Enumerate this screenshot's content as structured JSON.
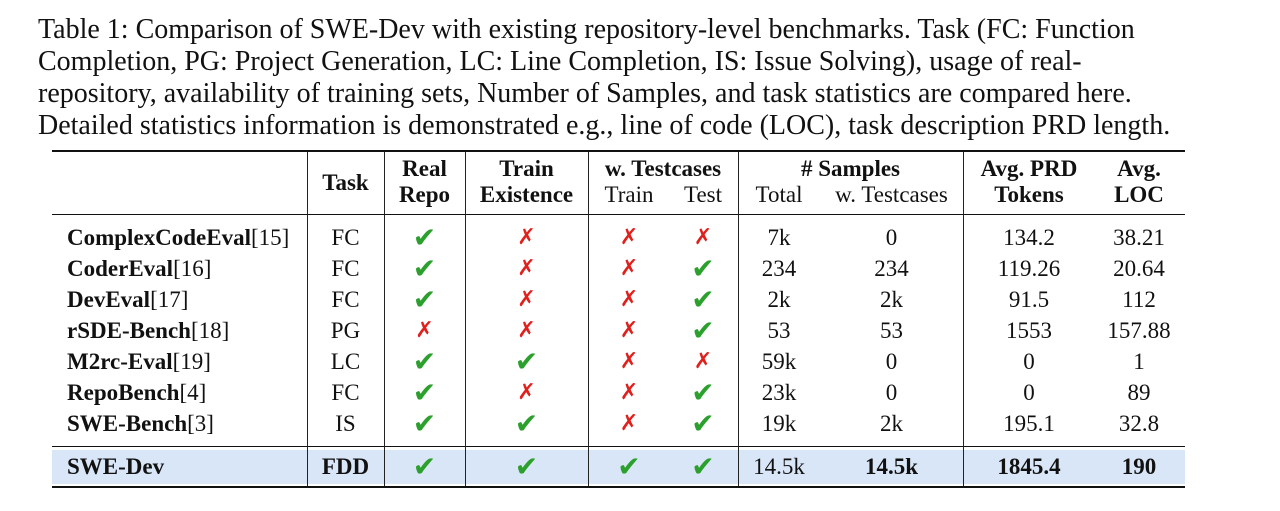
{
  "caption": [
    "Table 1: Comparison of SWE-Dev with existing repository-level benchmarks. Task (FC: Function",
    "Completion, PG: Project Generation, LC: Line Completion, IS: Issue Solving), usage of real-",
    "repository, availability of training sets, Number of Samples, and task statistics are compared here.",
    "Detailed statistics information is demonstrated e.g., line of code (LOC), task description PRD length."
  ],
  "headers": {
    "task": "Task",
    "real_repo": [
      "Real",
      "Repo"
    ],
    "train_existence": [
      "Train",
      "Existence"
    ],
    "testcases": "w. Testcases",
    "testcases_train": "Train",
    "testcases_test": "Test",
    "samples": "# Samples",
    "samples_total": "Total",
    "samples_testcases": "w. Testcases",
    "prd_tokens": [
      "Avg. PRD",
      "Tokens"
    ],
    "loc": [
      "Avg.",
      "LOC"
    ]
  },
  "marks": {
    "yes": "✔",
    "no": "✗"
  },
  "rows": [
    {
      "name": "ComplexCodeEval",
      "ref": "[15]",
      "task": "FC",
      "real_repo": true,
      "train": false,
      "tc_train": false,
      "tc_test": false,
      "total": "7k",
      "w_testcases": "0",
      "prd": "134.2",
      "loc": "38.21"
    },
    {
      "name": "CoderEval",
      "ref": "[16]",
      "task": "FC",
      "real_repo": true,
      "train": false,
      "tc_train": false,
      "tc_test": true,
      "total": "234",
      "w_testcases": "234",
      "prd": "119.26",
      "loc": "20.64"
    },
    {
      "name": "DevEval",
      "ref": "[17]",
      "task": "FC",
      "real_repo": true,
      "train": false,
      "tc_train": false,
      "tc_test": true,
      "total": "2k",
      "w_testcases": "2k",
      "prd": "91.5",
      "loc": "112"
    },
    {
      "name": "rSDE-Bench",
      "ref": "[18]",
      "task": "PG",
      "real_repo": false,
      "train": false,
      "tc_train": false,
      "tc_test": true,
      "total": "53",
      "w_testcases": "53",
      "prd": "1553",
      "loc": "157.88"
    },
    {
      "name": "M2rc-Eval",
      "ref": "[19]",
      "task": "LC",
      "real_repo": true,
      "train": true,
      "tc_train": false,
      "tc_test": false,
      "total": "59k",
      "w_testcases": "0",
      "prd": "0",
      "loc": "1"
    },
    {
      "name": "RepoBench",
      "ref": "[4]",
      "task": "FC",
      "real_repo": true,
      "train": false,
      "tc_train": false,
      "tc_test": true,
      "total": "23k",
      "w_testcases": "0",
      "prd": "0",
      "loc": "89"
    },
    {
      "name": "SWE-Bench",
      "ref": "[3]",
      "task": "IS",
      "real_repo": true,
      "train": true,
      "tc_train": false,
      "tc_test": true,
      "total": "19k",
      "w_testcases": "2k",
      "prd": "195.1",
      "loc": "32.8"
    }
  ],
  "final": {
    "name": "SWE-Dev",
    "task": "FDD",
    "real_repo": true,
    "train": true,
    "tc_train": true,
    "tc_test": true,
    "total": "14.5k",
    "w_testcases": "14.5k",
    "prd": "1845.4",
    "loc": "190"
  },
  "colors": {
    "check": "#2ca02c",
    "cross": "#e0201c",
    "highlight": "#d9e6f7"
  }
}
